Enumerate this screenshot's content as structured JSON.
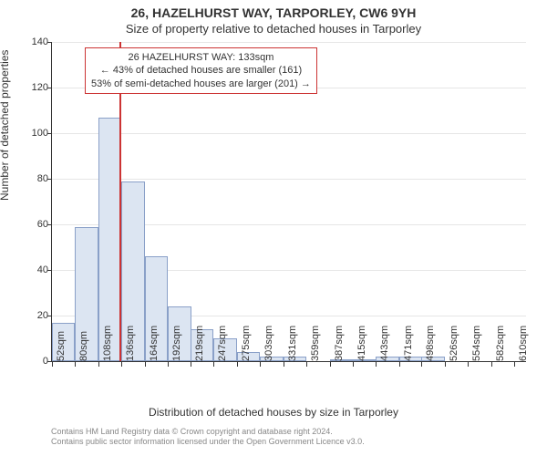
{
  "title_main": "26, HAZELHURST WAY, TARPORLEY, CW6 9YH",
  "title_sub": "Size of property relative to detached houses in Tarporley",
  "y_axis_label": "Number of detached properties",
  "x_axis_label": "Distribution of detached houses by size in Tarporley",
  "chart": {
    "type": "histogram",
    "y": {
      "min": 0,
      "max": 140,
      "tick_step": 20
    },
    "x": {
      "min": 52,
      "max": 624,
      "tick_labels": [
        "52sqm",
        "80sqm",
        "108sqm",
        "136sqm",
        "164sqm",
        "192sqm",
        "219sqm",
        "247sqm",
        "275sqm",
        "303sqm",
        "331sqm",
        "359sqm",
        "387sqm",
        "415sqm",
        "443sqm",
        "471sqm",
        "498sqm",
        "526sqm",
        "554sqm",
        "582sqm",
        "610sqm"
      ],
      "tick_values": [
        52,
        80,
        108,
        136,
        164,
        192,
        219,
        247,
        275,
        303,
        331,
        359,
        387,
        415,
        443,
        471,
        498,
        526,
        554,
        582,
        610
      ]
    },
    "bars": {
      "categories": [
        52,
        80,
        108,
        136,
        164,
        192,
        219,
        247,
        275,
        303,
        331,
        359,
        387,
        415,
        443,
        471,
        498,
        526,
        554,
        582,
        610
      ],
      "width_sqm": 28,
      "values": [
        17,
        59,
        107,
        79,
        46,
        24,
        14,
        10,
        4,
        2,
        2,
        0,
        1,
        1,
        2,
        2,
        2,
        0,
        0,
        0,
        0
      ],
      "fill_color": "#dce5f2",
      "border_color": "#8aa0c8"
    },
    "marker_line": {
      "value_sqm": 133,
      "color": "#cc3333",
      "width": 2
    },
    "plot_background": "#ffffff",
    "grid_color": "#e6e6e6",
    "axis_color": "#333333",
    "title_fontsize": 14,
    "subtitle_fontsize": 13,
    "label_fontsize": 12,
    "tick_fontsize": 11,
    "annotation_fontsize": 11
  },
  "annotation": {
    "line1": "26 HAZELHURST WAY: 133sqm",
    "line2": "← 43% of detached houses are smaller (161)",
    "line3": "53% of semi-detached houses are larger (201) →",
    "border_color": "#cc3333"
  },
  "credits": {
    "line1": "Contains HM Land Registry data © Crown copyright and database right 2024.",
    "line2": "Contains public sector information licensed under the Open Government Licence v3.0."
  }
}
